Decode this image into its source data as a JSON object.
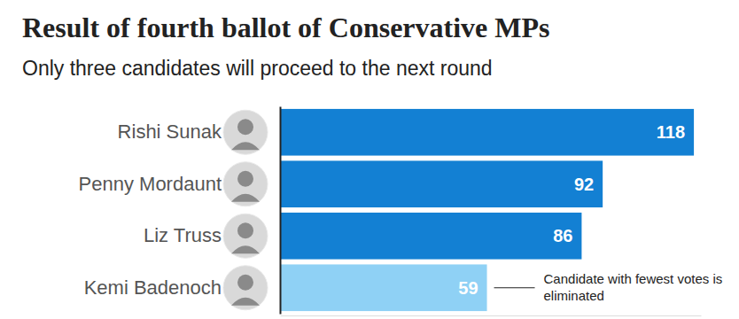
{
  "chart_data": {
    "type": "bar",
    "orientation": "horizontal",
    "title": "Result of fourth ballot of Conservative MPs",
    "subtitle": "Only three candidates will proceed to the next round",
    "categories": [
      "Rishi Sunak",
      "Penny Mordaunt",
      "Liz Truss",
      "Kemi Badenoch"
    ],
    "values": [
      118,
      92,
      86,
      59
    ],
    "colors": [
      "#1380d3",
      "#1380d3",
      "#1380d3",
      "#8fd1f5"
    ],
    "xlim": [
      0,
      120
    ],
    "xticks": [],
    "tick_labels": "y",
    "grid": false,
    "data_labels": true,
    "annotations": [
      {
        "text": [
          "Candidate with fewest votes is",
          "eliminated"
        ],
        "category": "Kemi Badenoch"
      }
    ]
  }
}
